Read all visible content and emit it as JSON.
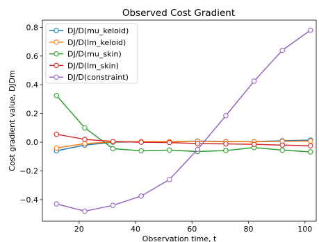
{
  "chart_data": {
    "type": "line",
    "title": "Observed Cost Gradient",
    "xlabel": "Observation time, t",
    "ylabel": "Cost gradient value, DJDm",
    "xlim": [
      7,
      104
    ],
    "ylim": [
      -0.55,
      0.85
    ],
    "xticks": [
      20,
      40,
      60,
      80,
      100
    ],
    "xtick_labels": [
      "20",
      "40",
      "60",
      "80",
      "100"
    ],
    "yticks": [
      -0.4,
      -0.2,
      0.0,
      0.2,
      0.4,
      0.6,
      0.8
    ],
    "ytick_labels": [
      "−0.4",
      "−0.2",
      "0.0",
      "0.2",
      "0.4",
      "0.6",
      "0.8"
    ],
    "grid": false,
    "legend_position": "top-left",
    "x": [
      12,
      22,
      32,
      42,
      52,
      62,
      72,
      82,
      92,
      102
    ],
    "series": [
      {
        "name": "DJ/D(mu_keloid)",
        "color": "#1f77b4",
        "values": [
          -0.06,
          -0.02,
          0.0,
          0.003,
          0.003,
          0.008,
          0.005,
          0.004,
          0.01,
          0.015
        ]
      },
      {
        "name": "DJ/D(lm_keloid)",
        "color": "#ff7f0e",
        "values": [
          -0.04,
          -0.01,
          0.002,
          0.004,
          0.004,
          0.006,
          0.004,
          0.003,
          0.006,
          0.008
        ]
      },
      {
        "name": "DJ/D(mu_skin)",
        "color": "#2ca02c",
        "values": [
          0.325,
          0.1,
          -0.045,
          -0.06,
          -0.055,
          -0.065,
          -0.058,
          -0.037,
          -0.055,
          -0.067
        ]
      },
      {
        "name": "DJ/D(lm_skin)",
        "color": "#d62728",
        "values": [
          0.055,
          0.02,
          0.005,
          0.0,
          -0.002,
          -0.01,
          -0.012,
          -0.015,
          -0.02,
          -0.025
        ]
      },
      {
        "name": "DJ/D(constraint)",
        "color": "#9467bd",
        "values": [
          -0.43,
          -0.48,
          -0.44,
          -0.375,
          -0.26,
          -0.05,
          0.185,
          0.425,
          0.64,
          0.78
        ]
      }
    ]
  }
}
